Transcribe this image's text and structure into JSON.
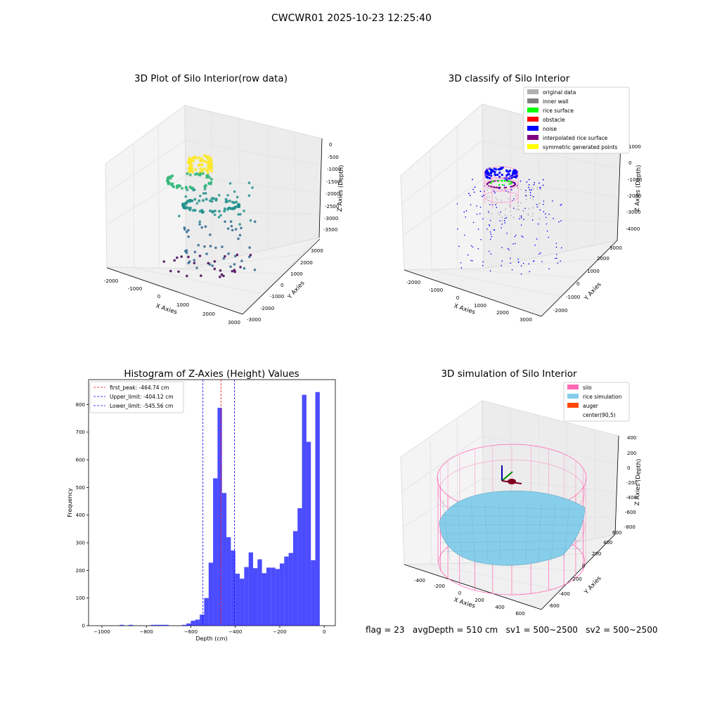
{
  "figure_title": "CWCWR01 2025-10-23 12:25:40",
  "status_line": "flag = 23   avgDepth = 510 cm   sv1 = 500~2500   sv2 = 500~2500",
  "chart_data": [
    {
      "type": "scatter",
      "title": "3D Plot of Silo Interior(row data)",
      "xlabel": "X Axies",
      "ylabel": "Y Axies",
      "zlabel": "Z Axies (Depth)",
      "xticks": [
        "-2000",
        "-1000",
        "0",
        "1000",
        "2000",
        "3000"
      ],
      "yticks": [
        "-3000",
        "-2000",
        "-1000",
        "0",
        "1000",
        "2000",
        "3000"
      ],
      "zticks": [
        "0",
        "-500",
        "-1000",
        "-1500",
        "-2000",
        "-2500",
        "-3000",
        "-3500"
      ],
      "xlim": [
        -2200,
        3200
      ],
      "ylim": [
        -3200,
        3200
      ],
      "zlim": [
        -3800,
        200
      ],
      "colormap": [
        "#440154",
        "#31688e",
        "#21918c",
        "#35b779",
        "#fde725"
      ]
    },
    {
      "type": "scatter",
      "title": "3D classify of Silo Interior",
      "xlabel": "X Axies",
      "ylabel": "Y Axies",
      "zlabel": "Z Axies (Depth)",
      "xticks": [
        "-2000",
        "-1000",
        "0",
        "1000",
        "2000",
        "3000"
      ],
      "yticks": [
        "-2000",
        "-1000",
        "0",
        "1000",
        "2000",
        "3000"
      ],
      "zticks": [
        "1000",
        "0",
        "-1000",
        "-2000",
        "-3000",
        "-4000"
      ],
      "legend_placement": "top-right",
      "legend": [
        {
          "label": "original data",
          "color": "#b0b0b0"
        },
        {
          "label": "inner wall",
          "color": "#808080"
        },
        {
          "label": "rice surface",
          "color": "#00ff00"
        },
        {
          "label": "obstacle",
          "color": "#ff0000"
        },
        {
          "label": "noise",
          "color": "#0000ff"
        },
        {
          "label": "interpolated rice surface",
          "color": "#800080"
        },
        {
          "label": "symmetric generated points",
          "color": "#ffff00"
        }
      ]
    },
    {
      "type": "bar",
      "title": "Histogram of Z-Axies (Height) Values",
      "xlabel": "Depth (cm)",
      "ylabel": "Frequency",
      "xlim": [
        -1060,
        50
      ],
      "ylim": [
        0,
        890
      ],
      "xticks": [
        -1000,
        -800,
        -600,
        -400,
        -200,
        0
      ],
      "yticks": [
        0,
        100,
        200,
        300,
        400,
        500,
        600,
        700,
        800
      ],
      "bar_color": "#0000ff",
      "bin_width": 20,
      "bins_start": [
        -920,
        -880,
        -780,
        -760,
        -740,
        -720,
        -640,
        -620,
        -600,
        -580,
        -560,
        -540,
        -520,
        -500,
        -480,
        -460,
        -440,
        -420,
        -400,
        -380,
        -360,
        -340,
        -320,
        -300,
        -280,
        -260,
        -240,
        -220,
        -200,
        -180,
        -160,
        -140,
        -120,
        -100,
        -80,
        -60,
        -40,
        -20
      ],
      "values": [
        3,
        3,
        3,
        3,
        3,
        3,
        3,
        8,
        18,
        22,
        40,
        100,
        228,
        533,
        788,
        480,
        320,
        272,
        188,
        170,
        212,
        265,
        208,
        240,
        190,
        210,
        210,
        205,
        225,
        250,
        263,
        342,
        425,
        835,
        665,
        237,
        845,
        0
      ],
      "legend_placement": "top-left",
      "lines": [
        {
          "label": "first_peak: -464.74 cm",
          "x": -464.74,
          "color": "#ff0000"
        },
        {
          "label": "Upper_limit: -404.12 cm",
          "x": -404.12,
          "color": "#0000ff"
        },
        {
          "label": "Lower_limit: -545.56 cm",
          "x": -545.56,
          "color": "#0000ff"
        }
      ]
    },
    {
      "type": "scatter",
      "title": "3D simulation of Silo Interior",
      "xlabel": "X Axies",
      "ylabel": "Y Axies",
      "zlabel": "Z Axies (Depth)",
      "xticks": [
        "-400",
        "-200",
        "0",
        "200",
        "400",
        "600"
      ],
      "yticks": [
        "-600",
        "-400",
        "-200",
        "0",
        "200",
        "400",
        "600"
      ],
      "zticks": [
        "400",
        "200",
        "0",
        "-200",
        "-400",
        "-600",
        "-800"
      ],
      "legend_placement": "top-right",
      "legend": [
        {
          "label": "silo",
          "color": "#ff69b4"
        },
        {
          "label": "rice simulation",
          "color": "#87ceeb"
        },
        {
          "label": "auger",
          "color": "#ff4500"
        },
        {
          "label": "center(90,5)",
          "color": ""
        }
      ]
    }
  ]
}
